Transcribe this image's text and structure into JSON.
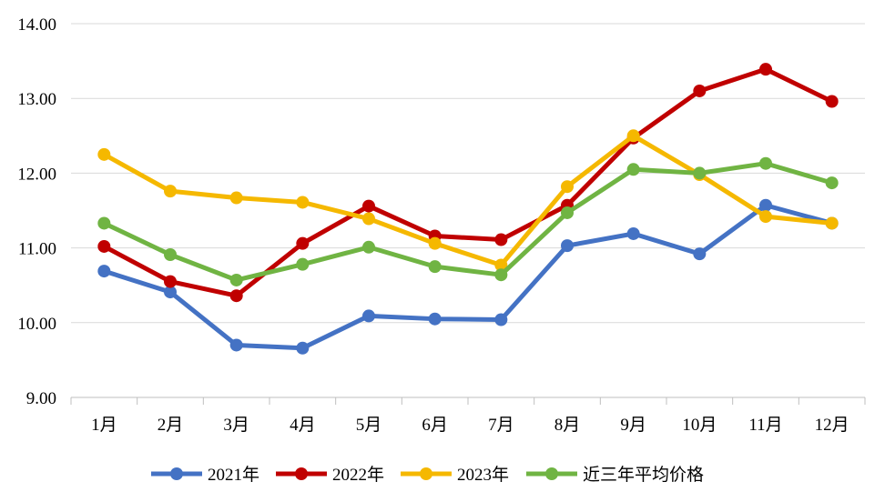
{
  "chart_data": {
    "type": "line",
    "title": "",
    "xlabel": "",
    "ylabel": "",
    "categories": [
      "1月",
      "2月",
      "3月",
      "4月",
      "5月",
      "6月",
      "7月",
      "8月",
      "9月",
      "10月",
      "11月",
      "12月"
    ],
    "ylim": [
      9.0,
      14.0
    ],
    "yticks": [
      "9.00",
      "10.00",
      "11.00",
      "12.00",
      "13.00",
      "14.00"
    ],
    "grid": true,
    "legend_position": "bottom",
    "series": [
      {
        "name": "2021年",
        "color": "#4472C4",
        "values": [
          10.69,
          10.41,
          9.7,
          9.66,
          10.09,
          10.05,
          10.04,
          11.03,
          11.19,
          10.92,
          11.57,
          11.33
        ]
      },
      {
        "name": "2022年",
        "color": "#C00000",
        "values": [
          11.02,
          10.55,
          10.36,
          11.06,
          11.56,
          11.16,
          11.11,
          11.57,
          12.47,
          13.1,
          13.39,
          12.96
        ]
      },
      {
        "name": "2023年",
        "color": "#F5B800",
        "values": [
          12.25,
          11.76,
          11.67,
          11.61,
          11.39,
          11.06,
          10.77,
          11.82,
          12.5,
          11.98,
          11.42,
          11.33
        ]
      },
      {
        "name": "近三年平均价格",
        "color": "#70B443",
        "values": [
          11.33,
          10.91,
          10.57,
          10.78,
          11.01,
          10.75,
          10.64,
          11.47,
          12.05,
          12.0,
          12.13,
          11.87
        ]
      }
    ]
  }
}
